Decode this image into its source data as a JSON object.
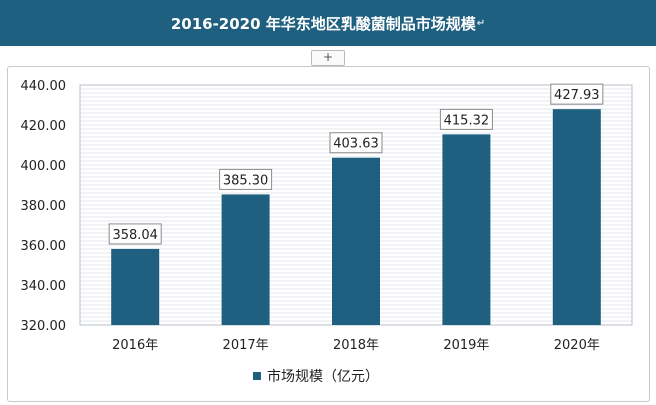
{
  "title": "2016-2020 年华东地区乳酸菌制品市场规模",
  "title_mark": "↵",
  "expand_label": "+",
  "colors": {
    "bar": "#1f5f7f",
    "title_bg": "#1f5f7f",
    "grid": "#c8d0dc",
    "label_border": "#8a8a8a"
  },
  "chart_data": {
    "type": "bar",
    "title": "2016-2020 年华东地区乳酸菌制品市场规模",
    "categories": [
      "2016年",
      "2017年",
      "2018年",
      "2019年",
      "2020年"
    ],
    "series": [
      {
        "name": "市场规模（亿元）",
        "values": [
          358.04,
          385.3,
          403.63,
          415.32,
          427.93
        ]
      }
    ],
    "value_labels": [
      "358.04",
      "385.30",
      "403.63",
      "415.32",
      "427.93"
    ],
    "yticks": [
      "320.00",
      "340.00",
      "360.00",
      "380.00",
      "400.00",
      "420.00",
      "440.00"
    ],
    "ylim": [
      320,
      440
    ],
    "grid": true,
    "legend_position": "bottom"
  }
}
